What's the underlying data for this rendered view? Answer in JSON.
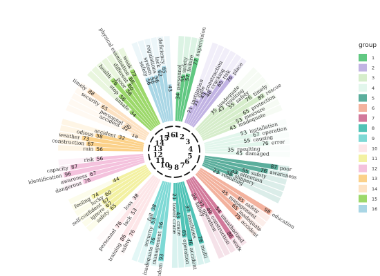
{
  "chart_data": {
    "type": "circular-bar",
    "title": "",
    "value_range": [
      0,
      100
    ],
    "legend": {
      "title": "group",
      "position": "right",
      "entries": [
        {
          "label": "1",
          "color": "#61c882"
        },
        {
          "label": "2",
          "color": "#c1b3e3"
        },
        {
          "label": "3",
          "color": "#d6edcb"
        },
        {
          "label": "4",
          "color": "#e2f6ec"
        },
        {
          "label": "5",
          "color": "#5bae9c"
        },
        {
          "label": "6",
          "color": "#f3b29e"
        },
        {
          "label": "7",
          "color": "#d2799b"
        },
        {
          "label": "8",
          "color": "#50c3b6"
        },
        {
          "label": "9",
          "color": "#7ed9d5"
        },
        {
          "label": "10",
          "color": "#fde6e8"
        },
        {
          "label": "11",
          "color": "#f3f1a2"
        },
        {
          "label": "12",
          "color": "#f4c2dd"
        },
        {
          "label": "13",
          "color": "#fbd189"
        },
        {
          "label": "14",
          "color": "#fde2c3"
        },
        {
          "label": "15",
          "color": "#9cd86a"
        },
        {
          "label": "16",
          "color": "#a9d6e5"
        }
      ]
    },
    "groups": [
      {
        "group": "1",
        "items": [
          {
            "word": "personnel",
            "value": 34
          },
          {
            "word": "safety",
            "value": 55
          },
          {
            "word": "failure",
            "value": 57
          },
          {
            "word": "supervision",
            "value": 77
          }
        ]
      },
      {
        "group": "2",
        "items": [
          {
            "word": "institution",
            "value": 21
          },
          {
            "word": "slide",
            "value": 31
          },
          {
            "word": "construction",
            "value": 43
          },
          {
            "word": "cracking",
            "value": 48
          },
          {
            "word": "risk",
            "value": 65
          },
          {
            "word": "place",
            "value": 76
          }
        ]
      },
      {
        "group": "3",
        "items": [
          {
            "word": "inadequate",
            "value": 35
          },
          {
            "word": "resulting",
            "value": 43
          },
          {
            "word": "safety",
            "value": 55
          },
          {
            "word": "timely",
            "value": 76
          },
          {
            "word": "rescue",
            "value": 89
          },
          {
            "word": "protection",
            "value": 65
          },
          {
            "word": "measure",
            "value": 53
          },
          {
            "word": "inadequate",
            "value": 43
          }
        ]
      },
      {
        "group": "4",
        "items": [
          {
            "word": "installation",
            "value": 53
          },
          {
            "word": "operation",
            "value": 67
          },
          {
            "word": "causing",
            "value": 55
          },
          {
            "word": "error",
            "value": 76
          },
          {
            "word": "resulting",
            "value": 35
          },
          {
            "word": "damaged",
            "value": 45
          }
        ]
      },
      {
        "group": "5",
        "items": [
          {
            "word": "poor",
            "value": 87
          },
          {
            "word": "awareness",
            "value": 76
          },
          {
            "word": "safety",
            "value": 55
          },
          {
            "word": "attention",
            "value": 43
          },
          {
            "word": "slippery",
            "value": 38
          },
          {
            "word": "resulting",
            "value": 23
          }
        ]
      },
      {
        "group": "6",
        "items": [
          {
            "word": "education",
            "value": 98
          },
          {
            "word": "safety",
            "value": 65
          },
          {
            "word": "management",
            "value": 45
          },
          {
            "word": "inadequate",
            "value": 65
          },
          {
            "word": "accident",
            "value": 75
          }
        ]
      },
      {
        "group": "7",
        "items": [
          {
            "word": "unauthorized",
            "value": 54
          },
          {
            "word": "work",
            "value": 86
          },
          {
            "word": "construction",
            "value": 49
          },
          {
            "word": "operation",
            "value": 37
          },
          {
            "word": "safety",
            "value": 26
          }
        ]
      },
      {
        "group": "8",
        "items": [
          {
            "word": "multi",
            "value": 76
          },
          {
            "word": "machines",
            "value": 37
          },
          {
            "word": "accident",
            "value": 76
          },
          {
            "word": "operation",
            "value": 65
          },
          {
            "word": "crane",
            "value": 43
          },
          {
            "word": "tower crane",
            "value": 21
          }
        ]
      },
      {
        "group": "9",
        "items": [
          {
            "word": "random",
            "value": 93
          },
          {
            "word": "management",
            "value": 56
          },
          {
            "word": "inadequate",
            "value": 76
          },
          {
            "word": "security",
            "value": 53
          },
          {
            "word": "fall",
            "value": 38
          }
        ]
      },
      {
        "group": "10",
        "items": [
          {
            "word": "safety",
            "value": 76
          },
          {
            "word": "training",
            "value": 86
          },
          {
            "word": "lack",
            "value": 53
          },
          {
            "word": "personnel",
            "value": 76
          },
          {
            "word": "loss",
            "value": 38
          }
        ]
      },
      {
        "group": "11",
        "items": [
          {
            "word": "safety",
            "value": 65
          },
          {
            "word": "ignore",
            "value": 67
          },
          {
            "word": "self-confident",
            "value": 67
          },
          {
            "word": "lucky",
            "value": 60
          },
          {
            "word": "feeling",
            "value": 74
          },
          {
            "word": "",
            "value": 44
          }
        ]
      },
      {
        "group": "12",
        "items": [
          {
            "word": "dangerous",
            "value": 76
          },
          {
            "word": "awareness",
            "value": 67
          },
          {
            "word": "identification",
            "value": 96
          },
          {
            "word": "capacity",
            "value": 87
          },
          {
            "word": "risk",
            "value": 56
          }
        ]
      },
      {
        "group": "13",
        "items": [
          {
            "word": "rain",
            "value": 56
          },
          {
            "word": "construction",
            "value": 67
          },
          {
            "word": "weather",
            "value": 73
          },
          {
            "word": "odious",
            "value": 58
          },
          {
            "word": "accident",
            "value": 32
          }
        ]
      },
      {
        "group": "14",
        "items": [
          {
            "word": "",
            "value": 18
          },
          {
            "word": "accident",
            "value": 32
          },
          {
            "word": "personnel",
            "value": 30
          },
          {
            "word": "security",
            "value": 65
          },
          {
            "word": "timely",
            "value": 88
          }
        ]
      },
      {
        "group": "15",
        "items": [
          {
            "word": "unsafe",
            "value": 34
          },
          {
            "word": "stop",
            "value": 56
          },
          {
            "word": "health",
            "value": 76
          },
          {
            "word": "poor",
            "value": 56
          },
          {
            "word": "different",
            "value": 60
          },
          {
            "word": "physical examination",
            "value": 66
          },
          {
            "word": "weak",
            "value": 72
          }
        ]
      },
      {
        "group": "16",
        "items": [
          {
            "word": "safety",
            "value": 56
          },
          {
            "word": "system",
            "value": 56
          },
          {
            "word": "regulations",
            "value": 56
          },
          {
            "word": "lack",
            "value": 62
          },
          {
            "word": "deficiency",
            "value": 65
          },
          {
            "word": "",
            "value": 43
          }
        ]
      }
    ]
  }
}
